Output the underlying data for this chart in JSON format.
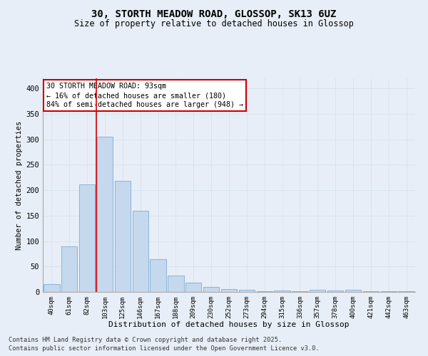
{
  "title1": "30, STORTH MEADOW ROAD, GLOSSOP, SK13 6UZ",
  "title2": "Size of property relative to detached houses in Glossop",
  "xlabel": "Distribution of detached houses by size in Glossop",
  "ylabel": "Number of detached properties",
  "bar_labels": [
    "40sqm",
    "61sqm",
    "82sqm",
    "103sqm",
    "125sqm",
    "146sqm",
    "167sqm",
    "188sqm",
    "209sqm",
    "230sqm",
    "252sqm",
    "273sqm",
    "294sqm",
    "315sqm",
    "336sqm",
    "357sqm",
    "378sqm",
    "400sqm",
    "421sqm",
    "442sqm",
    "463sqm"
  ],
  "bar_values": [
    15,
    90,
    212,
    305,
    218,
    160,
    65,
    32,
    18,
    10,
    6,
    4,
    2,
    3,
    2,
    4,
    3,
    4,
    2,
    2,
    2
  ],
  "bar_color": "#c5d8ee",
  "bar_edge_color": "#7aadd4",
  "grid_color": "#d8e4f0",
  "vline_x": 2.5,
  "annotation_text": "30 STORTH MEADOW ROAD: 93sqm\n← 16% of detached houses are smaller (180)\n84% of semi-detached houses are larger (948) →",
  "annotation_box_color": "#ffffff",
  "annotation_box_edge": "#cc0000",
  "vline_color": "#cc0000",
  "footer1": "Contains HM Land Registry data © Crown copyright and database right 2025.",
  "footer2": "Contains public sector information licensed under the Open Government Licence v3.0.",
  "bg_color": "#e8eef7",
  "ylim": [
    0,
    420
  ],
  "yticks": [
    0,
    50,
    100,
    150,
    200,
    250,
    300,
    350,
    400
  ]
}
